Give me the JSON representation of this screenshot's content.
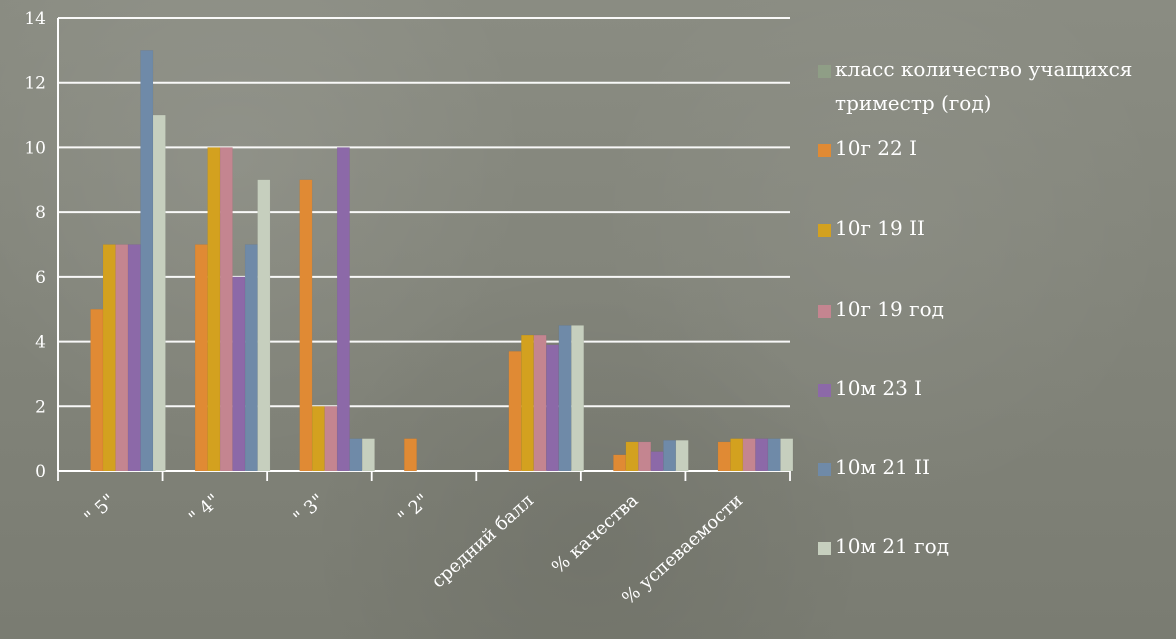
{
  "chart_data": {
    "type": "bar",
    "categories": [
      "\" 5\"",
      "\" 4\"",
      "\" 3\"",
      "\" 2\"",
      "средний балл",
      "% качества",
      "% успеваемости"
    ],
    "series": [
      {
        "name": "класс количество учащихся триместр (год)",
        "color": "#8f9e86",
        "values": [
          0,
          0,
          0,
          0,
          0,
          0,
          0
        ]
      },
      {
        "name": "10г 22 I",
        "color": "#e08a34",
        "values": [
          5,
          7,
          9,
          1,
          3.7,
          0.5,
          0.9
        ]
      },
      {
        "name": "10г 19 II",
        "color": "#d3a11f",
        "values": [
          7,
          10,
          2,
          0,
          4.2,
          0.9,
          1
        ]
      },
      {
        "name": "10г 19 год",
        "color": "#c48590",
        "values": [
          7,
          10,
          2,
          0,
          4.2,
          0.9,
          1
        ]
      },
      {
        "name": "10м 23 I",
        "color": "#8c69a8",
        "values": [
          7,
          6,
          10,
          0,
          3.9,
          0.6,
          1
        ]
      },
      {
        "name": "10м 21 II",
        "color": "#6f8aa8",
        "values": [
          13,
          7,
          1,
          0,
          4.5,
          0.95,
          1
        ]
      },
      {
        "name": "10м 21 год",
        "color": "#c6cfbe",
        "values": [
          11,
          9,
          1,
          0,
          4.5,
          0.95,
          1
        ]
      }
    ],
    "ylim": [
      0,
      14
    ],
    "yticks": [
      0,
      2,
      4,
      6,
      8,
      10,
      12,
      14
    ],
    "grid": true,
    "legend": "right",
    "title": "",
    "xlabel": "",
    "ylabel": ""
  },
  "colors": {
    "grid": "#ffffff",
    "text": "#ffffff",
    "background": "#7f8178"
  }
}
